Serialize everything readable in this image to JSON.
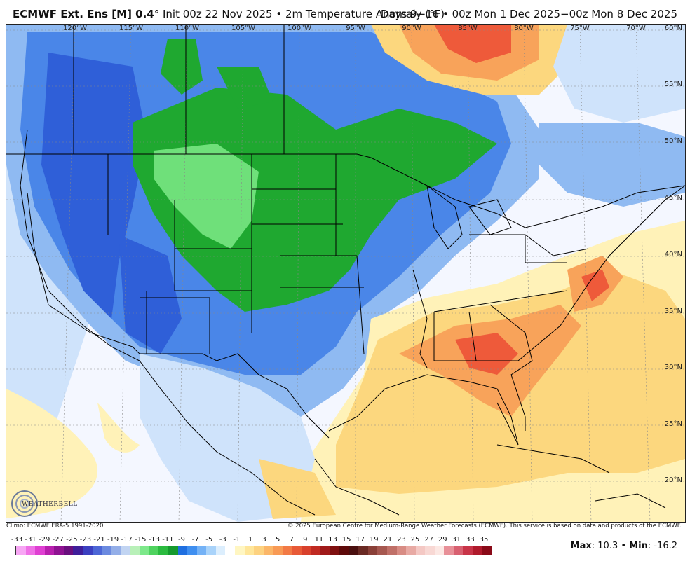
{
  "header": {
    "model": "ECMWF Ext. Ens [M] 0.4",
    "deg": "°",
    "init": "Init 00z 22 Nov 2025",
    "sep": "•",
    "field": "2m Temperature Anomaly (°F)",
    "valid": "Days 9−16 • 00z Mon 1 Dec 2025−00z Mon 8 Dec 2025"
  },
  "map": {
    "lon_labels": [
      "120°W",
      "115°W",
      "110°W",
      "105°W",
      "100°W",
      "95°W",
      "90°W",
      "85°W",
      "80°W",
      "75°W",
      "70°W"
    ],
    "lat_labels": [
      "60°N",
      "55°N",
      "50°N",
      "45°N",
      "40°N",
      "35°N",
      "30°N",
      "25°N",
      "20°N"
    ],
    "colors": {
      "cold_deep": "#2f5fd8",
      "cold": "#4a86e8",
      "cool": "#8fbaf2",
      "cool_light": "#cfe3fb",
      "neutral": "#f4f7ff",
      "green": "#1fa830",
      "green_light": "#6fe07a",
      "warm_light": "#fff2b8",
      "warm": "#fcd77e",
      "orange": "#f8a35a",
      "red": "#ee5a3a",
      "land_border": "#000000"
    }
  },
  "logo": {
    "text": "WEATHERBELL"
  },
  "footer": {
    "climo": "Climo: ECMWF ERA-5 1991-2020",
    "copyright": "© 2025 European Centre for Medium-Range Weather Forecasts (ECMWF). This service is based on data and products of the ECMWF."
  },
  "scale": {
    "ticks": [
      "-33",
      "-31",
      "-29",
      "-27",
      "-25",
      "-23",
      "-21",
      "-19",
      "-17",
      "-15",
      "-13",
      "-11",
      "-9",
      "-7",
      "-5",
      "-3",
      "-1",
      "1",
      "3",
      "5",
      "7",
      "9",
      "11",
      "13",
      "15",
      "17",
      "19",
      "21",
      "23",
      "25",
      "27",
      "29",
      "31",
      "33",
      "35"
    ],
    "colors": [
      "#f7a6f4",
      "#ef70e6",
      "#df3fd2",
      "#b81fae",
      "#8f1292",
      "#6a0f7e",
      "#3f1e9a",
      "#3b3fc0",
      "#4c66d6",
      "#6b8ae0",
      "#93aee8",
      "#c1d4f2",
      "#b8f0b8",
      "#7de88a",
      "#4fd35f",
      "#2bbb3f",
      "#169a2e",
      "#1f6fe0",
      "#3f8ff0",
      "#74b2f6",
      "#a9d3fa",
      "#dceefd",
      "#ffffff",
      "#fff6c2",
      "#ffe69a",
      "#fdd280",
      "#fbb668",
      "#f89a55",
      "#f27a45",
      "#e85a37",
      "#d8402c",
      "#c02a22",
      "#a01a1a",
      "#7f1010",
      "#5e0a0a",
      "#4a1010",
      "#6a2a24",
      "#8a4038",
      "#a65850",
      "#c07068",
      "#d88c84",
      "#e8aaa4",
      "#f4c8c4",
      "#f8d8d4",
      "#fce8e4",
      "#e89098",
      "#d86070",
      "#c83448",
      "#b01a2c",
      "#8a0a18"
    ]
  },
  "stats": {
    "max_label": "Max",
    "max_value": "10.3",
    "sep": "•",
    "min_label": "Min",
    "min_value": "-16.2"
  }
}
